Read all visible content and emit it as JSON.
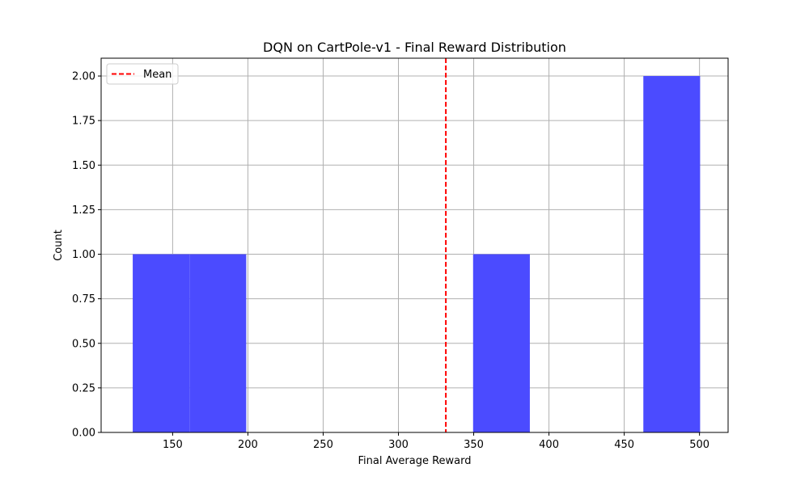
{
  "chart_data": {
    "type": "bar",
    "title": "DQN on CartPole-v1 - Final Reward Distribution",
    "xlabel": "Final Average Reward",
    "ylabel": "Count",
    "xlim": [
      102.5,
      519
    ],
    "ylim": [
      0,
      2.1
    ],
    "x_ticks": [
      150,
      200,
      250,
      300,
      350,
      400,
      450,
      500
    ],
    "y_ticks": [
      0.0,
      0.25,
      0.5,
      0.75,
      1.0,
      1.25,
      1.5,
      1.75,
      2.0
    ],
    "y_tick_labels": [
      "0.00",
      "0.25",
      "0.50",
      "0.75",
      "1.00",
      "1.25",
      "1.50",
      "1.75",
      "2.00"
    ],
    "bins": [
      {
        "x0": 123.5,
        "x1": 161.2,
        "count": 1
      },
      {
        "x0": 161.2,
        "x1": 198.9,
        "count": 1
      },
      {
        "x0": 198.9,
        "x1": 236.6,
        "count": 0
      },
      {
        "x0": 236.6,
        "x1": 274.3,
        "count": 0
      },
      {
        "x0": 274.3,
        "x1": 312.0,
        "count": 0
      },
      {
        "x0": 312.0,
        "x1": 349.6,
        "count": 0
      },
      {
        "x0": 349.6,
        "x1": 387.3,
        "count": 1
      },
      {
        "x0": 387.3,
        "x1": 425.0,
        "count": 0
      },
      {
        "x0": 425.0,
        "x1": 462.7,
        "count": 0
      },
      {
        "x0": 462.7,
        "x1": 500.4,
        "count": 2
      }
    ],
    "mean_line": {
      "label": "Mean",
      "x": 331.5,
      "color": "#ff0000",
      "style": "dashed"
    },
    "bar_color": "#4b4bff",
    "grid": true,
    "legend": {
      "placement": "top-left",
      "entries": [
        "Mean"
      ]
    }
  }
}
